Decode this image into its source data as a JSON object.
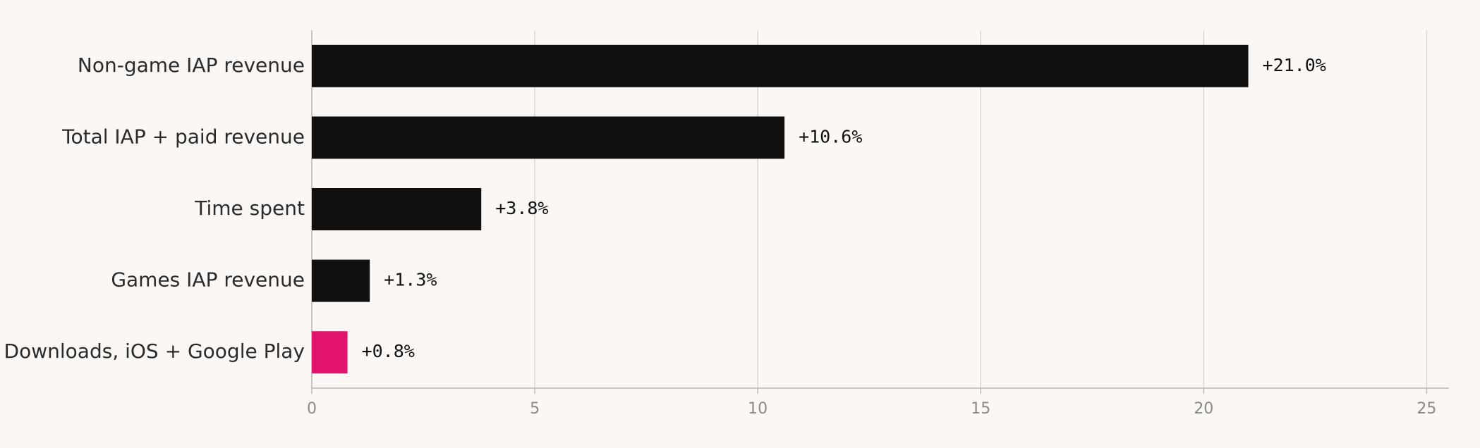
{
  "chart_data": {
    "type": "bar",
    "orientation": "horizontal",
    "categories": [
      "Non-game IAP revenue",
      "Total IAP + paid revenue",
      "Time spent",
      "Games IAP revenue",
      "Downloads, iOS + Google Play"
    ],
    "values": [
      21.0,
      10.6,
      3.8,
      1.3,
      0.8
    ],
    "value_labels": [
      "+21.0%",
      "+10.6%",
      "+3.8%",
      "+1.3%",
      "+0.8%"
    ],
    "colors": [
      "#11100e",
      "#11100e",
      "#11100e",
      "#11100e",
      "#e2136d"
    ],
    "xlim": [
      0,
      25.5
    ],
    "xticks": [
      0,
      5,
      10,
      15,
      20,
      25
    ],
    "grid": true
  }
}
